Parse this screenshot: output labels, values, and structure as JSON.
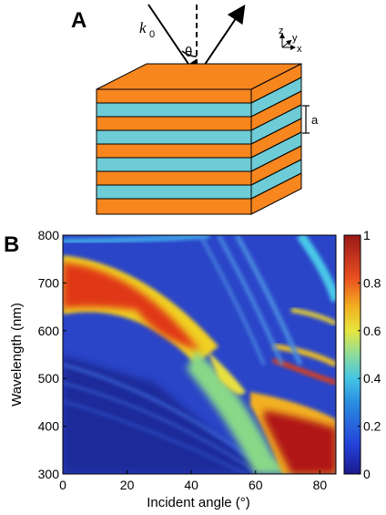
{
  "panel_a": {
    "label": "A",
    "k_symbol": "k",
    "k_subscript": "0",
    "theta": "θ",
    "layer_label": "a",
    "axes": {
      "z": "z",
      "y": "y",
      "x": "x"
    },
    "colors": {
      "orange": "#F7861F",
      "cyan": "#6DCCD6"
    }
  },
  "panel_b": {
    "label": "B"
  },
  "chart_data": {
    "type": "heatmap",
    "title": "",
    "xlabel": "Incident angle (°)",
    "ylabel": "Wavelength (nm)",
    "xlim": [
      0,
      85
    ],
    "ylim": [
      300,
      800
    ],
    "x_ticks": [
      "0",
      "20",
      "40",
      "60",
      "80"
    ],
    "x_tick_values": [
      0,
      20,
      40,
      60,
      80
    ],
    "y_ticks": [
      "300",
      "400",
      "500",
      "600",
      "700",
      "800"
    ],
    "y_tick_values": [
      300,
      400,
      500,
      600,
      700,
      800
    ],
    "colorbar_ticks": [
      "0",
      "0.2",
      "0.4",
      "0.6",
      "0.8",
      "1"
    ],
    "colorbar_values": [
      0,
      0.2,
      0.4,
      0.6,
      0.8,
      1
    ],
    "colormap": "jet",
    "features": [
      {
        "band": "high",
        "wavelength_range_nm": [
          620,
          770
        ],
        "angle_range_deg": [
          0,
          40
        ],
        "value": 0.9
      },
      {
        "band": "high",
        "wavelength_range_nm": [
          300,
          420
        ],
        "angle_range_deg": [
          65,
          85
        ],
        "value": 1.0
      },
      {
        "band": "medium",
        "description_value": 0.5
      }
    ]
  }
}
